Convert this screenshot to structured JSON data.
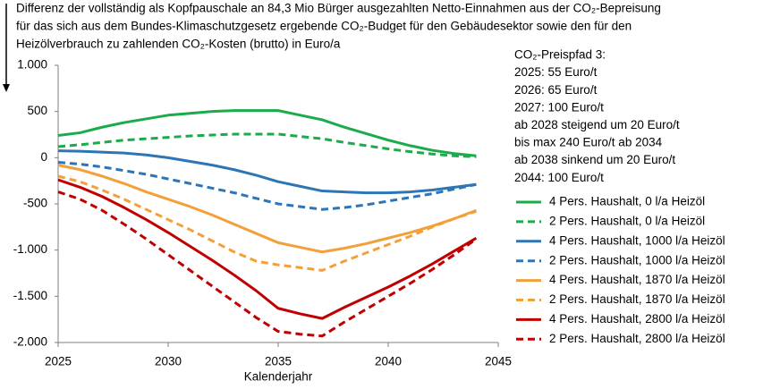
{
  "chart_data": {
    "type": "line",
    "title": [
      "Differenz der vollständig als Kopfpauschale an 84,3 Mio Bürger ausgezahlten Netto-Einnahmen aus der CO₂-Bepreisung",
      "für das sich aus dem Bundes-Klimaschutzgesetz ergebende CO₂-Budget für den Gebäudesektor sowie den für den",
      "Heizölverbrauch zu zahlenden CO₂-Kosten (brutto) in Euro/a"
    ],
    "annotation": [
      "CO₂-Preispfad 3:",
      "2025: 55 Euro/t",
      "2026: 65 Euro/t",
      "2027: 100 Euro/t",
      "ab 2028 steigend um 20 Euro/t",
      "bis max 240 Euro/t ab 2034",
      "ab 2038 sinkend um 20 Euro/t",
      "2044: 100 Euro/t"
    ],
    "xlabel": "Kalenderjahr",
    "x": [
      2025,
      2026,
      2027,
      2028,
      2029,
      2030,
      2031,
      2032,
      2033,
      2034,
      2035,
      2036,
      2037,
      2038,
      2039,
      2040,
      2041,
      2042,
      2043,
      2044
    ],
    "xlim": [
      2025,
      2045
    ],
    "xticks": [
      2025,
      2030,
      2035,
      2040,
      2045
    ],
    "ylim": [
      -2000,
      1000
    ],
    "yticks": [
      {
        "value": 1000,
        "label": "1.000"
      },
      500,
      0,
      -500,
      {
        "value": -1000,
        "label": "-1.000"
      },
      {
        "value": -1500,
        "label": "-1.500"
      },
      {
        "value": -2000,
        "label": "-2.000"
      }
    ],
    "series": [
      {
        "name": "4 Pers. Haushalt, 0 l/a Heizöl",
        "color": "#1aab4b",
        "dashed": false,
        "values": [
          240,
          270,
          330,
          380,
          420,
          460,
          480,
          500,
          510,
          510,
          510,
          460,
          410,
          330,
          260,
          190,
          130,
          80,
          45,
          20
        ]
      },
      {
        "name": "2 Pers. Haushalt, 0 l/a Heizöl",
        "color": "#1aab4b",
        "dashed": true,
        "values": [
          120,
          140,
          165,
          190,
          205,
          220,
          235,
          245,
          255,
          255,
          255,
          230,
          205,
          165,
          130,
          95,
          65,
          40,
          20,
          10
        ]
      },
      {
        "name": "4 Pers. Haushalt, 1000 l/a Heizöl",
        "color": "#2e75b6",
        "dashed": false,
        "values": [
          75,
          70,
          60,
          50,
          30,
          0,
          -40,
          -80,
          -130,
          -190,
          -260,
          -310,
          -360,
          -370,
          -380,
          -380,
          -370,
          -350,
          -320,
          -290
        ]
      },
      {
        "name": "2 Pers. Haushalt, 1000 l/a Heizöl",
        "color": "#2e75b6",
        "dashed": true,
        "values": [
          -50,
          -70,
          -100,
          -140,
          -180,
          -230,
          -280,
          -330,
          -380,
          -440,
          -500,
          -530,
          -560,
          -540,
          -510,
          -470,
          -430,
          -390,
          -340,
          -290
        ]
      },
      {
        "name": "4 Pers. Haushalt, 1870 l/a Heizöl",
        "color": "#f4a03a",
        "dashed": false,
        "values": [
          -80,
          -130,
          -200,
          -280,
          -370,
          -450,
          -530,
          -620,
          -720,
          -820,
          -920,
          -970,
          -1020,
          -980,
          -930,
          -870,
          -810,
          -740,
          -660,
          -570
        ]
      },
      {
        "name": "2 Pers. Haushalt, 1870 l/a Heizöl",
        "color": "#f4a03a",
        "dashed": true,
        "values": [
          -200,
          -260,
          -350,
          -450,
          -560,
          -670,
          -780,
          -900,
          -1020,
          -1120,
          -1160,
          -1190,
          -1220,
          -1120,
          -1030,
          -940,
          -850,
          -750,
          -660,
          -580
        ]
      },
      {
        "name": "4 Pers. Haushalt, 2800 l/a Heizöl",
        "color": "#c00000",
        "dashed": false,
        "values": [
          -240,
          -320,
          -420,
          -540,
          -670,
          -810,
          -960,
          -1110,
          -1270,
          -1440,
          -1630,
          -1690,
          -1740,
          -1620,
          -1510,
          -1400,
          -1280,
          -1150,
          -1010,
          -870
        ]
      },
      {
        "name": "2 Pers. Haushalt, 2800 l/a Heizöl",
        "color": "#c00000",
        "dashed": true,
        "values": [
          -370,
          -450,
          -570,
          -720,
          -880,
          -1050,
          -1220,
          -1390,
          -1560,
          -1730,
          -1880,
          -1910,
          -1930,
          -1780,
          -1640,
          -1500,
          -1360,
          -1210,
          -1050,
          -880
        ]
      }
    ]
  }
}
